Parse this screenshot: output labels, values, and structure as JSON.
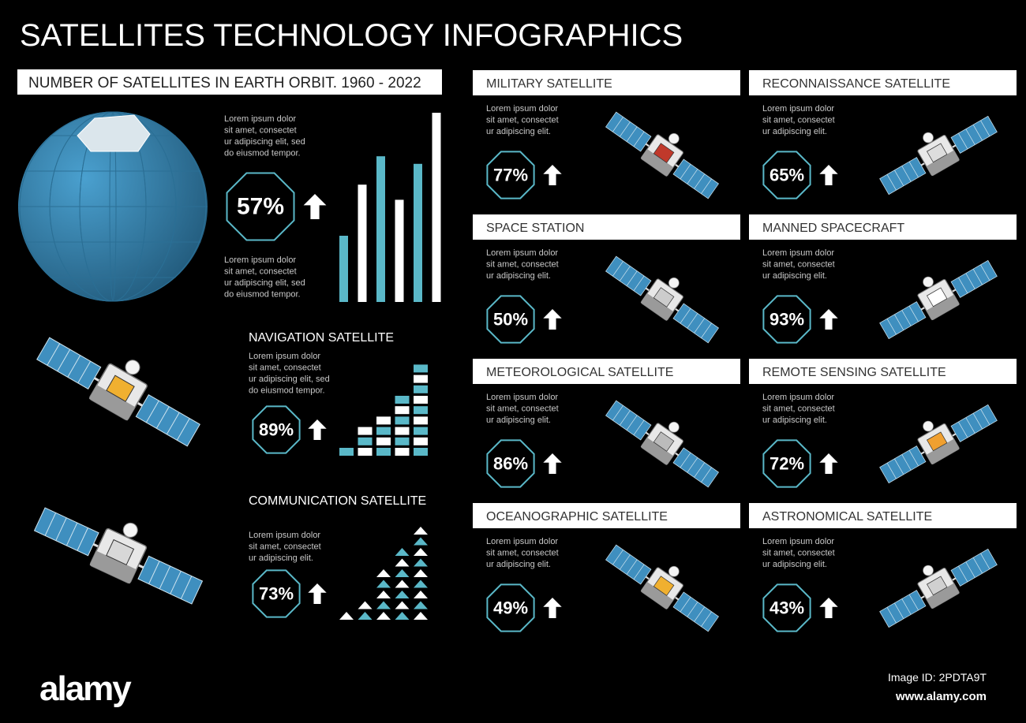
{
  "header": {
    "title": "SATELLITES TECHNOLOGY INFOGRAPHICS"
  },
  "orbit": {
    "title": "NUMBER OF SATELLITES IN EARTH ORBIT.  1960 - 2022",
    "text_top": [
      "Lorem ipsum dolor",
      "sit amet, consectet",
      "ur adipiscing elit, sed",
      "do eiusmod tempor."
    ],
    "percent": "57%",
    "text_bottom": [
      "Lorem ipsum dolor",
      "sit amet, consectet",
      "ur adipiscing elit, sed",
      "do eiusmod tempor."
    ],
    "bars": [
      35,
      62,
      77,
      54,
      73,
      100
    ]
  },
  "navigation": {
    "title": "NAVIGATION SATELLITE",
    "text": [
      "Lorem ipsum dolor",
      "sit amet, consectet",
      "ur adipiscing elit, sed",
      "do eiusmod tempor."
    ],
    "percent": "89%",
    "blocks": [
      1,
      3,
      4,
      6,
      9
    ]
  },
  "communication": {
    "title": "COMMUNICATION SATELLITE",
    "text": [
      "Lorem ipsum dolor",
      "sit amet, consectet",
      "ur adipiscing elit."
    ],
    "percent": "73%",
    "triangles": [
      1,
      2,
      5,
      7,
      9
    ]
  },
  "cards": [
    {
      "title": "MILITARY SATELLITE",
      "text": [
        "Lorem ipsum dolor",
        "sit amet, consectet",
        "ur adipiscing elit."
      ],
      "percent": "77%"
    },
    {
      "title": "RECONNAISSANCE SATELLITE",
      "text": [
        "Lorem ipsum dolor",
        "sit amet, consectet",
        "ur adipiscing elit."
      ],
      "percent": "65%"
    },
    {
      "title": "SPACE STATION",
      "text": [
        "Lorem ipsum dolor",
        "sit amet, consectet",
        "ur adipiscing elit."
      ],
      "percent": "50%"
    },
    {
      "title": "MANNED SPACECRAFT",
      "text": [
        "Lorem ipsum dolor",
        "sit amet, consectet",
        "ur adipiscing elit."
      ],
      "percent": "93%"
    },
    {
      "title": "METEOROLOGICAL SATELLITE",
      "text": [
        "Lorem ipsum dolor",
        "sit amet, consectet",
        "ur adipiscing elit."
      ],
      "percent": "86%"
    },
    {
      "title": "REMOTE SENSING SATELLITE",
      "text": [
        "Lorem ipsum dolor",
        "sit amet, consectet",
        "ur adipiscing elit."
      ],
      "percent": "72%"
    },
    {
      "title": "OCEANOGRAPHIC SATELLITE",
      "text": [
        "Lorem ipsum dolor",
        "sit amet, consectet",
        "ur adipiscing elit."
      ],
      "percent": "49%"
    },
    {
      "title": "ASTRONOMICAL SATELLITE",
      "text": [
        "Lorem ipsum dolor",
        "sit amet, consectet",
        "ur adipiscing elit."
      ],
      "percent": "43%"
    }
  ],
  "footer": {
    "logo": "alamy",
    "image_id": "Image ID: 2PDTA9T",
    "url": "www.alamy.com"
  }
}
